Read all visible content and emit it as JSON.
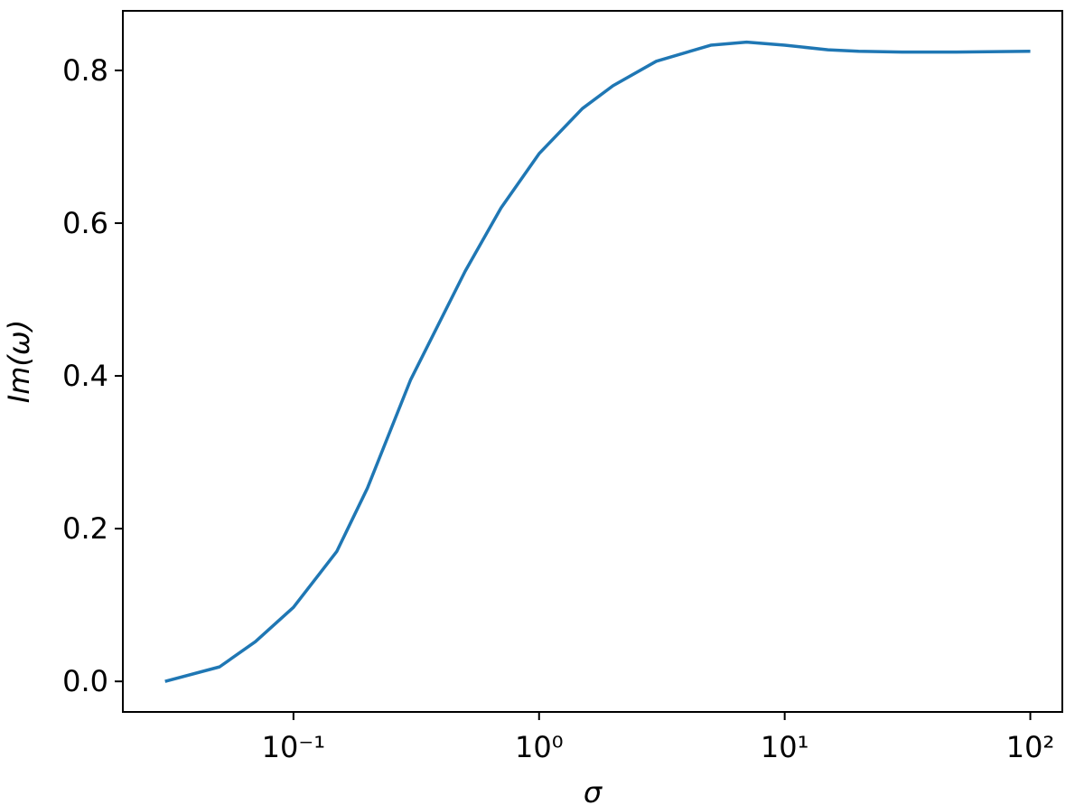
{
  "chart_data": {
    "type": "line",
    "xlabel": "σ",
    "ylabel": "Im(ω)",
    "x": [
      0.03,
      0.05,
      0.07,
      0.1,
      0.15,
      0.2,
      0.3,
      0.5,
      0.7,
      1,
      1.5,
      2,
      3,
      5,
      7,
      10,
      15,
      20,
      30,
      50,
      100
    ],
    "series": [
      {
        "color": "#1f77b4",
        "values": [
          0.0,
          0.019,
          0.052,
          0.097,
          0.17,
          0.253,
          0.395,
          0.537,
          0.62,
          0.691,
          0.75,
          0.78,
          0.812,
          0.833,
          0.837,
          0.833,
          0.827,
          0.825,
          0.824,
          0.824,
          0.825
        ]
      }
    ],
    "xscale": "log",
    "xlim": [
      0.0202,
      135
    ],
    "xticks": [
      {
        "value": 0.1,
        "label": "10⁻¹"
      },
      {
        "value": 1,
        "label": "10⁰"
      },
      {
        "value": 10,
        "label": "10¹"
      },
      {
        "value": 100,
        "label": "10²"
      }
    ],
    "ylim": [
      -0.04,
      0.878
    ],
    "yticks": [
      {
        "value": 0,
        "label": "0.0"
      },
      0.2,
      0.4,
      0.6,
      0.8
    ],
    "grid": false
  }
}
